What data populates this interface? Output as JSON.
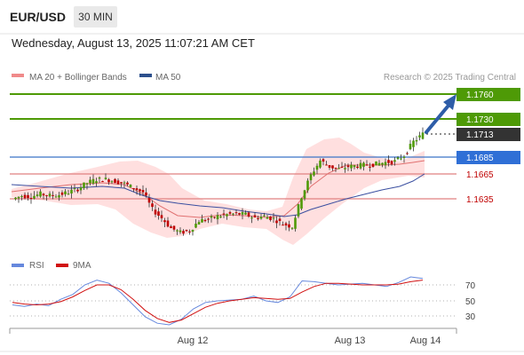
{
  "header": {
    "pair": "EUR/USD",
    "timeframe": "30 MIN",
    "datetime": "Wednesday, August 13, 2025 11:07:21 AM CET"
  },
  "legend": {
    "ma20": "MA 20 + Bollinger Bands",
    "ma50": "MA 50",
    "credit": "Research © 2025 Trading Central"
  },
  "rsi_legend": {
    "rsi": "RSI",
    "ma9": "9MA"
  },
  "colors": {
    "resistance": "#4e9a06",
    "pivot": "#3b73c8",
    "support": "#e08080",
    "current": "#222222",
    "arrow": "#2e5da8",
    "bollinger": "#ffdada",
    "ma20": "#e08080",
    "ma50": "#3a4fa0",
    "rsi": "#5b80d6",
    "rsi_ma": "#d11111",
    "candle_up": "#4e9a06",
    "candle_down": "#c00000"
  },
  "chart_data": {
    "type": "candlestick",
    "price_levels": [
      {
        "name": "resistance",
        "value": 1.176,
        "label": "1.1760"
      },
      {
        "name": "resistance",
        "value": 1.173,
        "label": "1.1730"
      },
      {
        "name": "current",
        "value": 1.1713,
        "label": "1.1713"
      },
      {
        "name": "pivot",
        "value": 1.1685,
        "label": "1.1685"
      },
      {
        "name": "support",
        "value": 1.1665,
        "label": "1.1665"
      },
      {
        "name": "support",
        "value": 1.1635,
        "label": "1.1635"
      }
    ],
    "x_ticks": [
      "Aug 12",
      "Aug 13",
      "Aug 14"
    ],
    "close_path": [
      1.1637,
      1.1641,
      1.164,
      1.1643,
      1.1641,
      1.1642,
      1.1645,
      1.1649,
      1.1656,
      1.166,
      1.166,
      1.1658,
      1.1655,
      1.165,
      1.1645,
      1.1625,
      1.1615,
      1.1603,
      1.1598,
      1.16,
      1.1612,
      1.1613,
      1.1617,
      1.1619,
      1.162,
      1.1619,
      1.1615,
      1.1617,
      1.1614,
      1.1608,
      1.1605,
      1.164,
      1.1665,
      1.1682,
      1.1675,
      1.1672,
      1.1675,
      1.1676,
      1.1677,
      1.1678,
      1.168,
      1.1681,
      1.1688,
      1.1704,
      1.1713
    ],
    "rsi_axis": [
      70,
      50,
      30
    ],
    "rsi_path": [
      45,
      43,
      46,
      44,
      52,
      58,
      70,
      76,
      72,
      60,
      45,
      30,
      22,
      20,
      27,
      40,
      48,
      50,
      51,
      52,
      56,
      50,
      48,
      55,
      75,
      74,
      72,
      70,
      71,
      72,
      70,
      68,
      73,
      80,
      78
    ],
    "rsi_ma_path": [
      48,
      46,
      45,
      46,
      49,
      55,
      63,
      70,
      70,
      64,
      52,
      38,
      28,
      23,
      26,
      34,
      42,
      47,
      50,
      52,
      54,
      53,
      52,
      53,
      61,
      68,
      72,
      72,
      71,
      70,
      70,
      70,
      71,
      74,
      76
    ]
  }
}
